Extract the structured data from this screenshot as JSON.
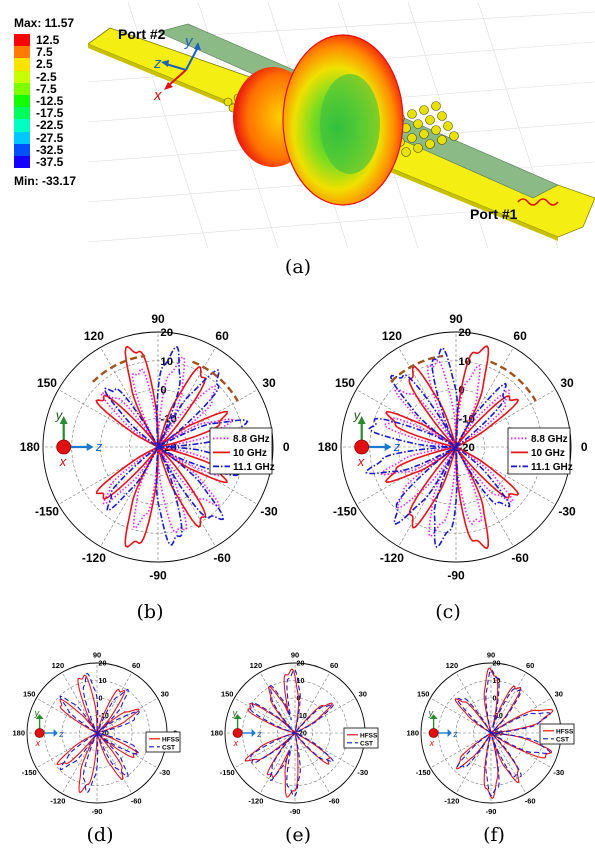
{
  "panel_a": {
    "max_label": "Max: 11.57",
    "min_label": "Min: -33.17",
    "scale": [
      {
        "label": "12.5",
        "color": "#ff0000"
      },
      {
        "label": "7.5",
        "color": "#ff7a00"
      },
      {
        "label": "2.5",
        "color": "#ffe400"
      },
      {
        "label": "-2.5",
        "color": "#c8ff00"
      },
      {
        "label": "-7.5",
        "color": "#7dff00"
      },
      {
        "label": "-12.5",
        "color": "#14ff00"
      },
      {
        "label": "-17.5",
        "color": "#00ff5a"
      },
      {
        "label": "-22.5",
        "color": "#00ffc3"
      },
      {
        "label": "-27.5",
        "color": "#00c8ff"
      },
      {
        "label": "-32.5",
        "color": "#0050ff"
      },
      {
        "label": "-37.5",
        "color": "#1400ff"
      }
    ],
    "port2": "Port #2",
    "port1": "Port #1",
    "axis_y": "y",
    "axis_z": "z",
    "axis_x": "x"
  },
  "captions": {
    "a": "(a)",
    "b": "(b)",
    "c": "(c)",
    "d": "(d)",
    "e": "(e)",
    "f": "(f)"
  },
  "polar_labels": {
    "angles": [
      "90",
      "60",
      "30",
      "0",
      "-30",
      "-60",
      "-90",
      "-120",
      "-150",
      "180",
      "150",
      "120"
    ],
    "radials": [
      "20",
      "10",
      "0",
      "-10",
      "-20"
    ]
  },
  "legend_freq": {
    "f1": "8.8 GHz",
    "f2": "10 GHz",
    "f3": "11.1 GHz"
  },
  "legend_sim": {
    "hfss": "HFSS",
    "cst": "CST"
  },
  "colors": {
    "f1": "#ee22ee",
    "f2": "#e8141c",
    "f3": "#1818cc",
    "strip": "#f4f000",
    "arrow": "#a0521d"
  },
  "chart_data": [
    {
      "type": "polar-line",
      "panel": "b",
      "angle_ticks": [
        90,
        60,
        30,
        0,
        -30,
        -60,
        -90,
        -120,
        -150,
        180,
        150,
        120
      ],
      "radial_ticks": [
        20,
        10,
        0,
        -10,
        -20
      ],
      "rlim": [
        -20,
        20
      ],
      "legend": "right",
      "series": [
        {
          "name": "8.8 GHz",
          "color": "#ee22ee",
          "style": "dotted",
          "lobes": [
            [
              75,
              12
            ],
            [
              45,
              9
            ],
            [
              20,
              7
            ],
            [
              -20,
              7
            ],
            [
              -45,
              9
            ],
            [
              -75,
              12
            ],
            [
              105,
              9
            ],
            [
              135,
              7
            ],
            [
              -105,
              9
            ],
            [
              -135,
              7
            ]
          ]
        },
        {
          "name": "10 GHz",
          "color": "#e8141c",
          "style": "solid",
          "lobes": [
            [
              105,
              17
            ],
            [
              -105,
              17
            ],
            [
              60,
              12
            ],
            [
              -60,
              12
            ],
            [
              25,
              7
            ],
            [
              -25,
              7
            ],
            [
              140,
              8
            ],
            [
              -140,
              8
            ]
          ]
        },
        {
          "name": "11.1 GHz",
          "color": "#1818cc",
          "style": "dashdot",
          "lobes": [
            [
              80,
              15
            ],
            [
              -80,
              15
            ],
            [
              50,
              14
            ],
            [
              -50,
              14
            ],
            [
              15,
              12
            ],
            [
              -15,
              12
            ],
            [
              130,
              8
            ],
            [
              -130,
              8
            ]
          ]
        }
      ]
    },
    {
      "type": "polar-line",
      "panel": "c",
      "angle_ticks": [
        90,
        60,
        30,
        0,
        -30,
        -60,
        -90,
        -120,
        -150,
        180,
        150,
        120
      ],
      "radial_ticks": [
        20,
        10,
        0,
        -10,
        -20
      ],
      "rlim": [
        -20,
        20
      ],
      "legend": "right",
      "series": [
        {
          "name": "8.8 GHz",
          "color": "#ee22ee",
          "style": "dotted",
          "lobes": [
            [
              105,
              12
            ],
            [
              135,
              9
            ],
            [
              160,
              7
            ],
            [
              -160,
              7
            ],
            [
              -135,
              9
            ],
            [
              -105,
              12
            ],
            [
              75,
              9
            ],
            [
              45,
              7
            ],
            [
              -75,
              9
            ],
            [
              -45,
              7
            ]
          ]
        },
        {
          "name": "10 GHz",
          "color": "#e8141c",
          "style": "solid",
          "lobes": [
            [
              75,
              17
            ],
            [
              -75,
              17
            ],
            [
              120,
              12
            ],
            [
              -120,
              12
            ],
            [
              155,
              7
            ],
            [
              -155,
              7
            ],
            [
              40,
              8
            ],
            [
              -40,
              8
            ]
          ]
        },
        {
          "name": "11.1 GHz",
          "color": "#1818cc",
          "style": "dashdot",
          "lobes": [
            [
              100,
              15
            ],
            [
              -100,
              15
            ],
            [
              130,
              14
            ],
            [
              -130,
              14
            ],
            [
              165,
              12
            ],
            [
              -165,
              12
            ],
            [
              50,
              8
            ],
            [
              -50,
              8
            ]
          ]
        }
      ]
    },
    {
      "type": "polar-line",
      "panel": "d",
      "angle_ticks": [
        90,
        60,
        30,
        0,
        -30,
        -60,
        -90,
        -120,
        -150,
        180,
        150,
        120
      ],
      "radial_ticks": [
        20,
        10,
        0,
        -10,
        -20
      ],
      "rlim": [
        -20,
        20
      ],
      "legend": "right",
      "series": [
        {
          "name": "HFSS",
          "color": "#e8141c",
          "style": "solid",
          "lobes": [
            [
              105,
              15
            ],
            [
              -105,
              15
            ],
            [
              60,
              10
            ],
            [
              -60,
              10
            ],
            [
              30,
              7
            ],
            [
              -30,
              7
            ],
            [
              140,
              9
            ],
            [
              -140,
              9
            ]
          ]
        },
        {
          "name": "CST",
          "color": "#1818cc",
          "style": "dashed",
          "lobes": [
            [
              100,
              14
            ],
            [
              -100,
              14
            ],
            [
              55,
              10
            ],
            [
              -55,
              10
            ],
            [
              25,
              7
            ],
            [
              -25,
              7
            ],
            [
              135,
              9
            ],
            [
              -135,
              9
            ]
          ]
        }
      ]
    },
    {
      "type": "polar-line",
      "panel": "e",
      "angle_ticks": [
        90,
        60,
        30,
        0,
        -30,
        -60,
        -90,
        -120,
        -150,
        180,
        150,
        120
      ],
      "radial_ticks": [
        20,
        10,
        0,
        -10,
        -20
      ],
      "rlim": [
        -20,
        20
      ],
      "legend": "right",
      "series": [
        {
          "name": "HFSS",
          "color": "#e8141c",
          "style": "solid",
          "lobes": [
            [
              95,
              17
            ],
            [
              -95,
              17
            ],
            [
              120,
              10
            ],
            [
              -120,
              10
            ],
            [
              150,
              12
            ],
            [
              -150,
              12
            ],
            [
              40,
              7
            ],
            [
              -40,
              7
            ]
          ]
        },
        {
          "name": "CST",
          "color": "#1818cc",
          "style": "dashed",
          "lobes": [
            [
              92,
              16
            ],
            [
              -92,
              16
            ],
            [
              118,
              10
            ],
            [
              -118,
              10
            ],
            [
              148,
              11
            ],
            [
              -148,
              11
            ],
            [
              38,
              7
            ],
            [
              -38,
              7
            ]
          ]
        }
      ]
    },
    {
      "type": "polar-line",
      "panel": "f",
      "angle_ticks": [
        90,
        60,
        30,
        0,
        -30,
        -60,
        -90,
        -120,
        -150,
        180,
        150,
        120
      ],
      "radial_ticks": [
        20,
        10,
        0,
        -10,
        -20
      ],
      "rlim": [
        -20,
        20
      ],
      "legend": "right",
      "series": [
        {
          "name": "HFSS",
          "color": "#e8141c",
          "style": "solid",
          "lobes": [
            [
              90,
              17
            ],
            [
              -90,
              17
            ],
            [
              60,
              12
            ],
            [
              -60,
              12
            ],
            [
              20,
              17
            ],
            [
              -20,
              17
            ],
            [
              135,
              8
            ],
            [
              -135,
              8
            ]
          ]
        },
        {
          "name": "CST",
          "color": "#1818cc",
          "style": "dashed",
          "lobes": [
            [
              88,
              16
            ],
            [
              -88,
              16
            ],
            [
              58,
              11
            ],
            [
              -58,
              11
            ],
            [
              18,
              15
            ],
            [
              -18,
              15
            ],
            [
              132,
              8
            ],
            [
              -132,
              8
            ]
          ]
        }
      ]
    }
  ]
}
